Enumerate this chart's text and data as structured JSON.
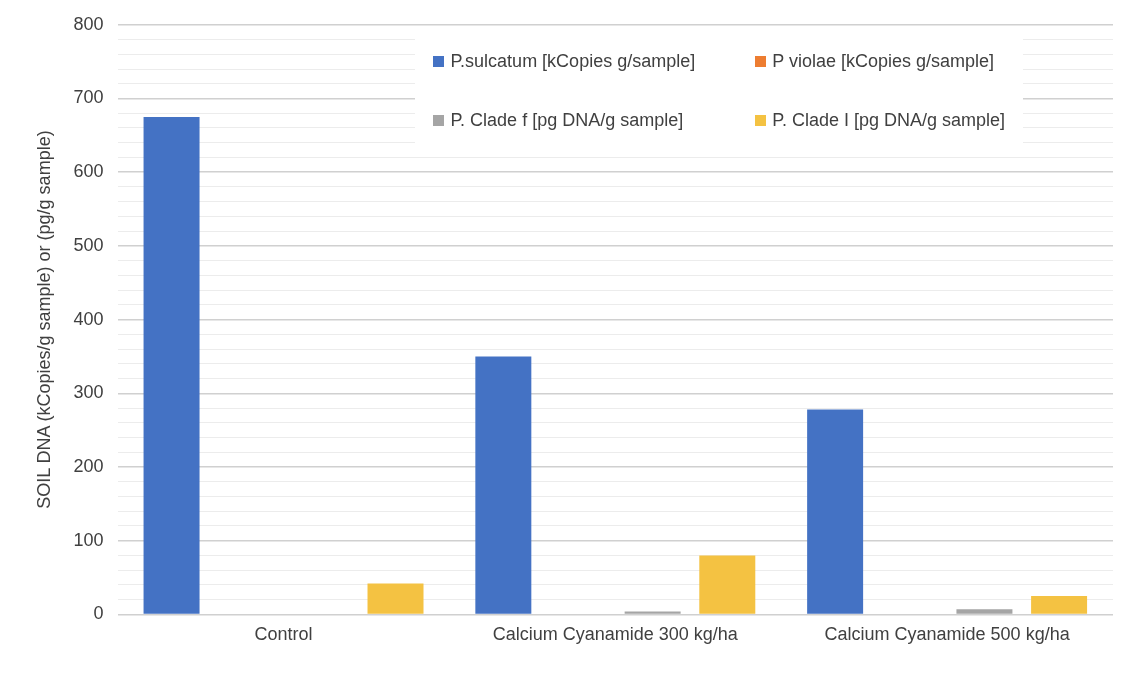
{
  "chart_data": {
    "type": "bar",
    "ylabel": "SOIL DNA (kCopies/g sample) or (pg/g sample)",
    "categories": [
      "Control",
      "Calcium Cyanamide 300 kg/ha",
      "Calcium Cyanamide 500 kg/ha"
    ],
    "series": [
      {
        "name": "P.sulcatum [kCopies g/sample]",
        "color": "#4472c4",
        "values": [
          675,
          350,
          278
        ]
      },
      {
        "name": "P violae [kCopies g/sample]",
        "color": "#ed7d31",
        "values": [
          0,
          0,
          0
        ]
      },
      {
        "name": "P. Clade f [pg DNA/g sample]",
        "color": "#a5a5a5",
        "values": [
          0,
          4,
          7
        ]
      },
      {
        "name": "P. Clade I [pg DNA/g sample]",
        "color": "#f4c242",
        "values": [
          42,
          80,
          25
        ]
      }
    ],
    "ylim": [
      0,
      800
    ],
    "yticks": [
      0,
      {
        "value": 20,
        "label": null
      },
      {
        "value": 40,
        "label": null
      },
      {
        "value": 60,
        "label": null
      },
      {
        "value": 80,
        "label": null
      },
      100,
      {
        "value": 120,
        "label": null
      },
      {
        "value": 140,
        "label": null
      },
      {
        "value": 160,
        "label": null
      },
      {
        "value": 180,
        "label": null
      },
      200,
      {
        "value": 220,
        "label": null
      },
      {
        "value": 240,
        "label": null
      },
      {
        "value": 260,
        "label": null
      },
      {
        "value": 280,
        "label": null
      },
      300,
      {
        "value": 320,
        "label": null
      },
      {
        "value": 340,
        "label": null
      },
      {
        "value": 360,
        "label": null
      },
      {
        "value": 380,
        "label": null
      },
      400,
      {
        "value": 420,
        "label": null
      },
      {
        "value": 440,
        "label": null
      },
      {
        "value": 460,
        "label": null
      },
      {
        "value": 480,
        "label": null
      },
      500,
      {
        "value": 520,
        "label": null
      },
      {
        "value": 540,
        "label": null
      },
      {
        "value": 560,
        "label": null
      },
      {
        "value": 580,
        "label": null
      },
      600,
      {
        "value": 620,
        "label": null
      },
      {
        "value": 640,
        "label": null
      },
      {
        "value": 660,
        "label": null
      },
      {
        "value": 680,
        "label": null
      },
      700,
      {
        "value": 720,
        "label": null
      },
      {
        "value": 740,
        "label": null
      },
      {
        "value": 760,
        "label": null
      },
      {
        "value": 780,
        "label": null
      },
      800
    ],
    "grid": "y",
    "legend": "top right"
  }
}
